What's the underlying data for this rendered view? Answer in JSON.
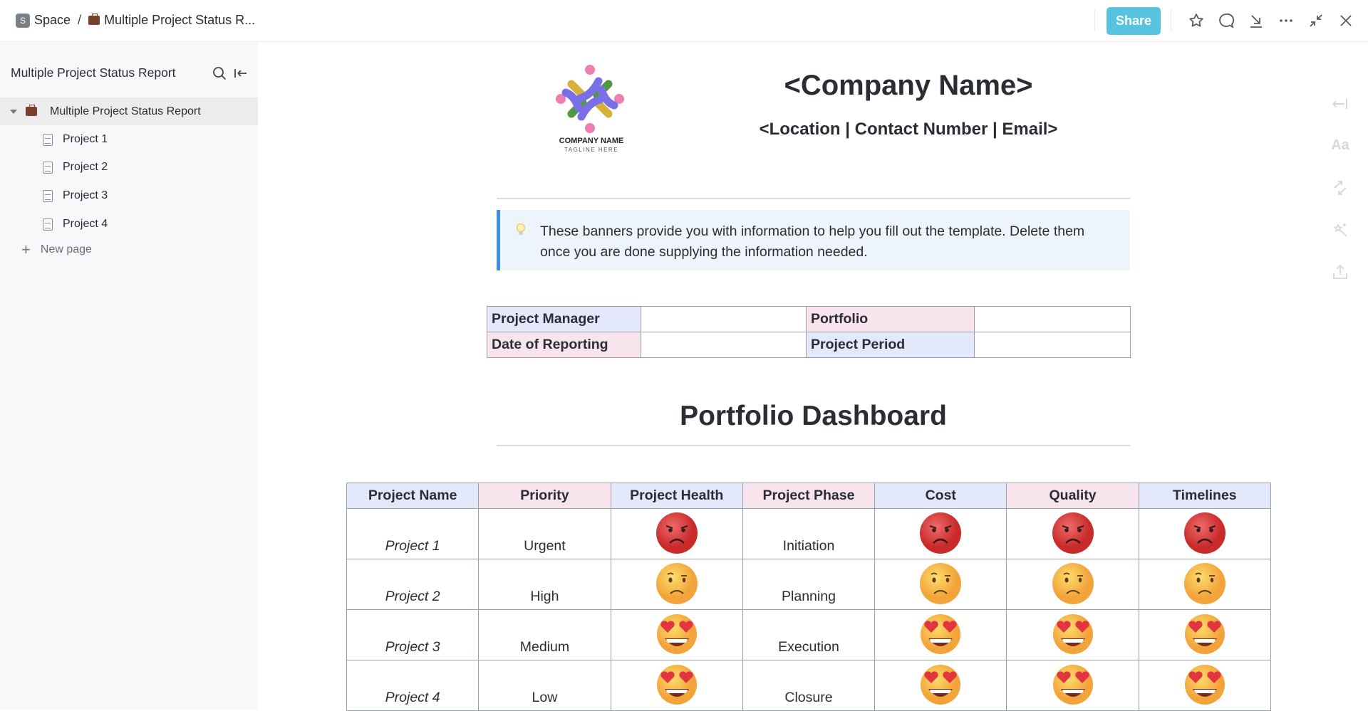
{
  "topbar": {
    "space_badge": "S",
    "space": "Space",
    "separator": "/",
    "doc_title": "Multiple Project Status R...",
    "share_label": "Share",
    "icons": [
      "star-icon",
      "comment-icon",
      "download-icon",
      "more-icon",
      "collapse-icon",
      "close-icon"
    ]
  },
  "sidebar": {
    "title": "Multiple Project Status Report",
    "root": "Multiple Project Status Report",
    "items": [
      {
        "label": "Project 1"
      },
      {
        "label": "Project 2"
      },
      {
        "label": "Project 3"
      },
      {
        "label": "Project 4"
      }
    ],
    "new_page": "New page"
  },
  "rail": {
    "font_label": "Aa"
  },
  "logo": {
    "name": "COMPANY NAME",
    "tagline": "TAGLINE HERE"
  },
  "header": {
    "company": "<Company Name>",
    "contact": "<Location | Contact Number | Email>"
  },
  "banner": {
    "text": "These banners provide you with information to help you fill out the template. Delete them once you are done supplying the information needed."
  },
  "info_table": {
    "project_manager": "Project Manager",
    "portfolio": "Portfolio",
    "date_of_reporting": "Date of Reporting",
    "project_period": "Project Period"
  },
  "dashboard": {
    "title": "Portfolio Dashboard",
    "columns": [
      "Project Name",
      "Priority",
      "Project Health",
      "Project Phase",
      "Cost",
      "Quality",
      "Timelines"
    ],
    "rows": [
      {
        "name": "Project 1",
        "priority": "Urgent",
        "health": "angry",
        "phase": "Initiation",
        "cost": "angry",
        "quality": "angry",
        "timelines": "angry"
      },
      {
        "name": "Project 2",
        "priority": "High",
        "health": "frown",
        "phase": "Planning",
        "cost": "frown",
        "quality": "frown",
        "timelines": "frown"
      },
      {
        "name": "Project 3",
        "priority": "Medium",
        "health": "heart-eyes",
        "phase": "Execution",
        "cost": "heart-eyes",
        "quality": "heart-eyes",
        "timelines": "heart-eyes"
      },
      {
        "name": "Project 4",
        "priority": "Low",
        "health": "heart-eyes",
        "phase": "Closure",
        "cost": "heart-eyes",
        "quality": "heart-eyes",
        "timelines": "heart-eyes"
      }
    ]
  },
  "colors": {
    "accent": "#58c3df",
    "header_blue": "#e3e8fb",
    "header_pink": "#f8e4ec",
    "banner_border": "#3d8fe0",
    "banner_bg": "#eef4fc"
  }
}
